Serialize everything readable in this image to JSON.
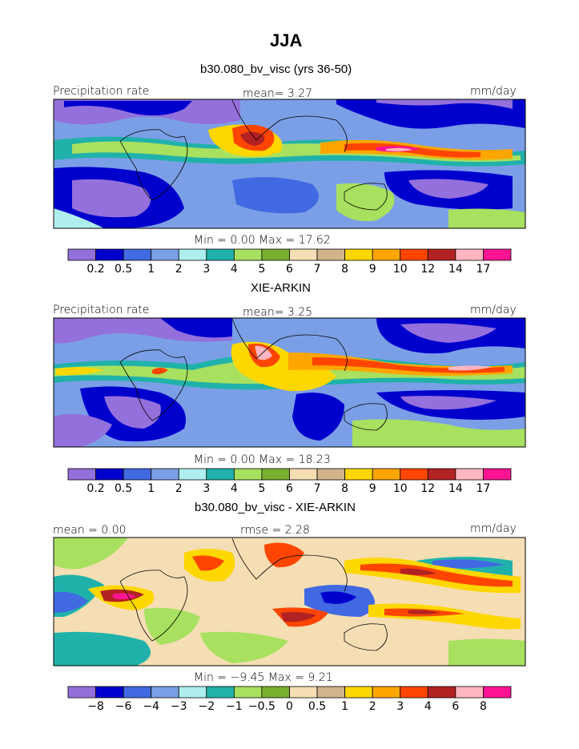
{
  "title": "JJA",
  "panels": [
    {
      "id": "model",
      "heading": "b30.080_bv_visc (yrs 36-50)",
      "left_label": "Precipitation rate",
      "center_label": "mean=    3.27",
      "right_label": "mm/day",
      "minmax": "Min =     0.00 Max =   17.62",
      "colorbar": {
        "colors": [
          "#9370db",
          "#0000cd",
          "#4169e1",
          "#7b9fe6",
          "#afeeee",
          "#20b2aa",
          "#a8e05f",
          "#7ab030",
          "#f5deb3",
          "#d2b48c",
          "#ffd700",
          "#ffa500",
          "#ff4500",
          "#b22222",
          "#ffb6c1",
          "#ff1493"
        ],
        "labels": [
          "0.2",
          "0.5",
          "1",
          "2",
          "3",
          "4",
          "5",
          "6",
          "7",
          "8",
          "9",
          "10",
          "12",
          "14",
          "17"
        ]
      }
    },
    {
      "id": "obs",
      "heading": "XIE-ARKIN",
      "left_label": "Precipitation rate",
      "center_label": "mean=    3.25",
      "right_label": "mm/day",
      "minmax": "Min =     0.00 Max =   18.23",
      "colorbar": {
        "colors": [
          "#9370db",
          "#0000cd",
          "#4169e1",
          "#7b9fe6",
          "#afeeee",
          "#20b2aa",
          "#a8e05f",
          "#7ab030",
          "#f5deb3",
          "#d2b48c",
          "#ffd700",
          "#ffa500",
          "#ff4500",
          "#b22222",
          "#ffb6c1",
          "#ff1493"
        ],
        "labels": [
          "0.2",
          "0.5",
          "1",
          "2",
          "3",
          "4",
          "5",
          "6",
          "7",
          "8",
          "9",
          "10",
          "12",
          "14",
          "17"
        ]
      }
    },
    {
      "id": "diff",
      "heading": "b30.080_bv_visc - XIE-ARKIN",
      "left_label": "mean =    0.00",
      "center_label": "rmse =    2.28",
      "right_label": "mm/day",
      "minmax": "Min =   −9.45 Max =    9.21",
      "colorbar": {
        "colors": [
          "#9370db",
          "#0000cd",
          "#4169e1",
          "#7b9fe6",
          "#afeeee",
          "#20b2aa",
          "#a8e05f",
          "#7ab030",
          "#f5deb3",
          "#d2b48c",
          "#ffd700",
          "#ffa500",
          "#ff4500",
          "#b22222",
          "#ffb6c1",
          "#ff1493"
        ],
        "labels": [
          "−8",
          "−6",
          "−4",
          "−3",
          "−2",
          "−1",
          "−0.5",
          "0",
          "0.5",
          "1",
          "2",
          "3",
          "4",
          "6",
          "8"
        ]
      }
    }
  ]
}
